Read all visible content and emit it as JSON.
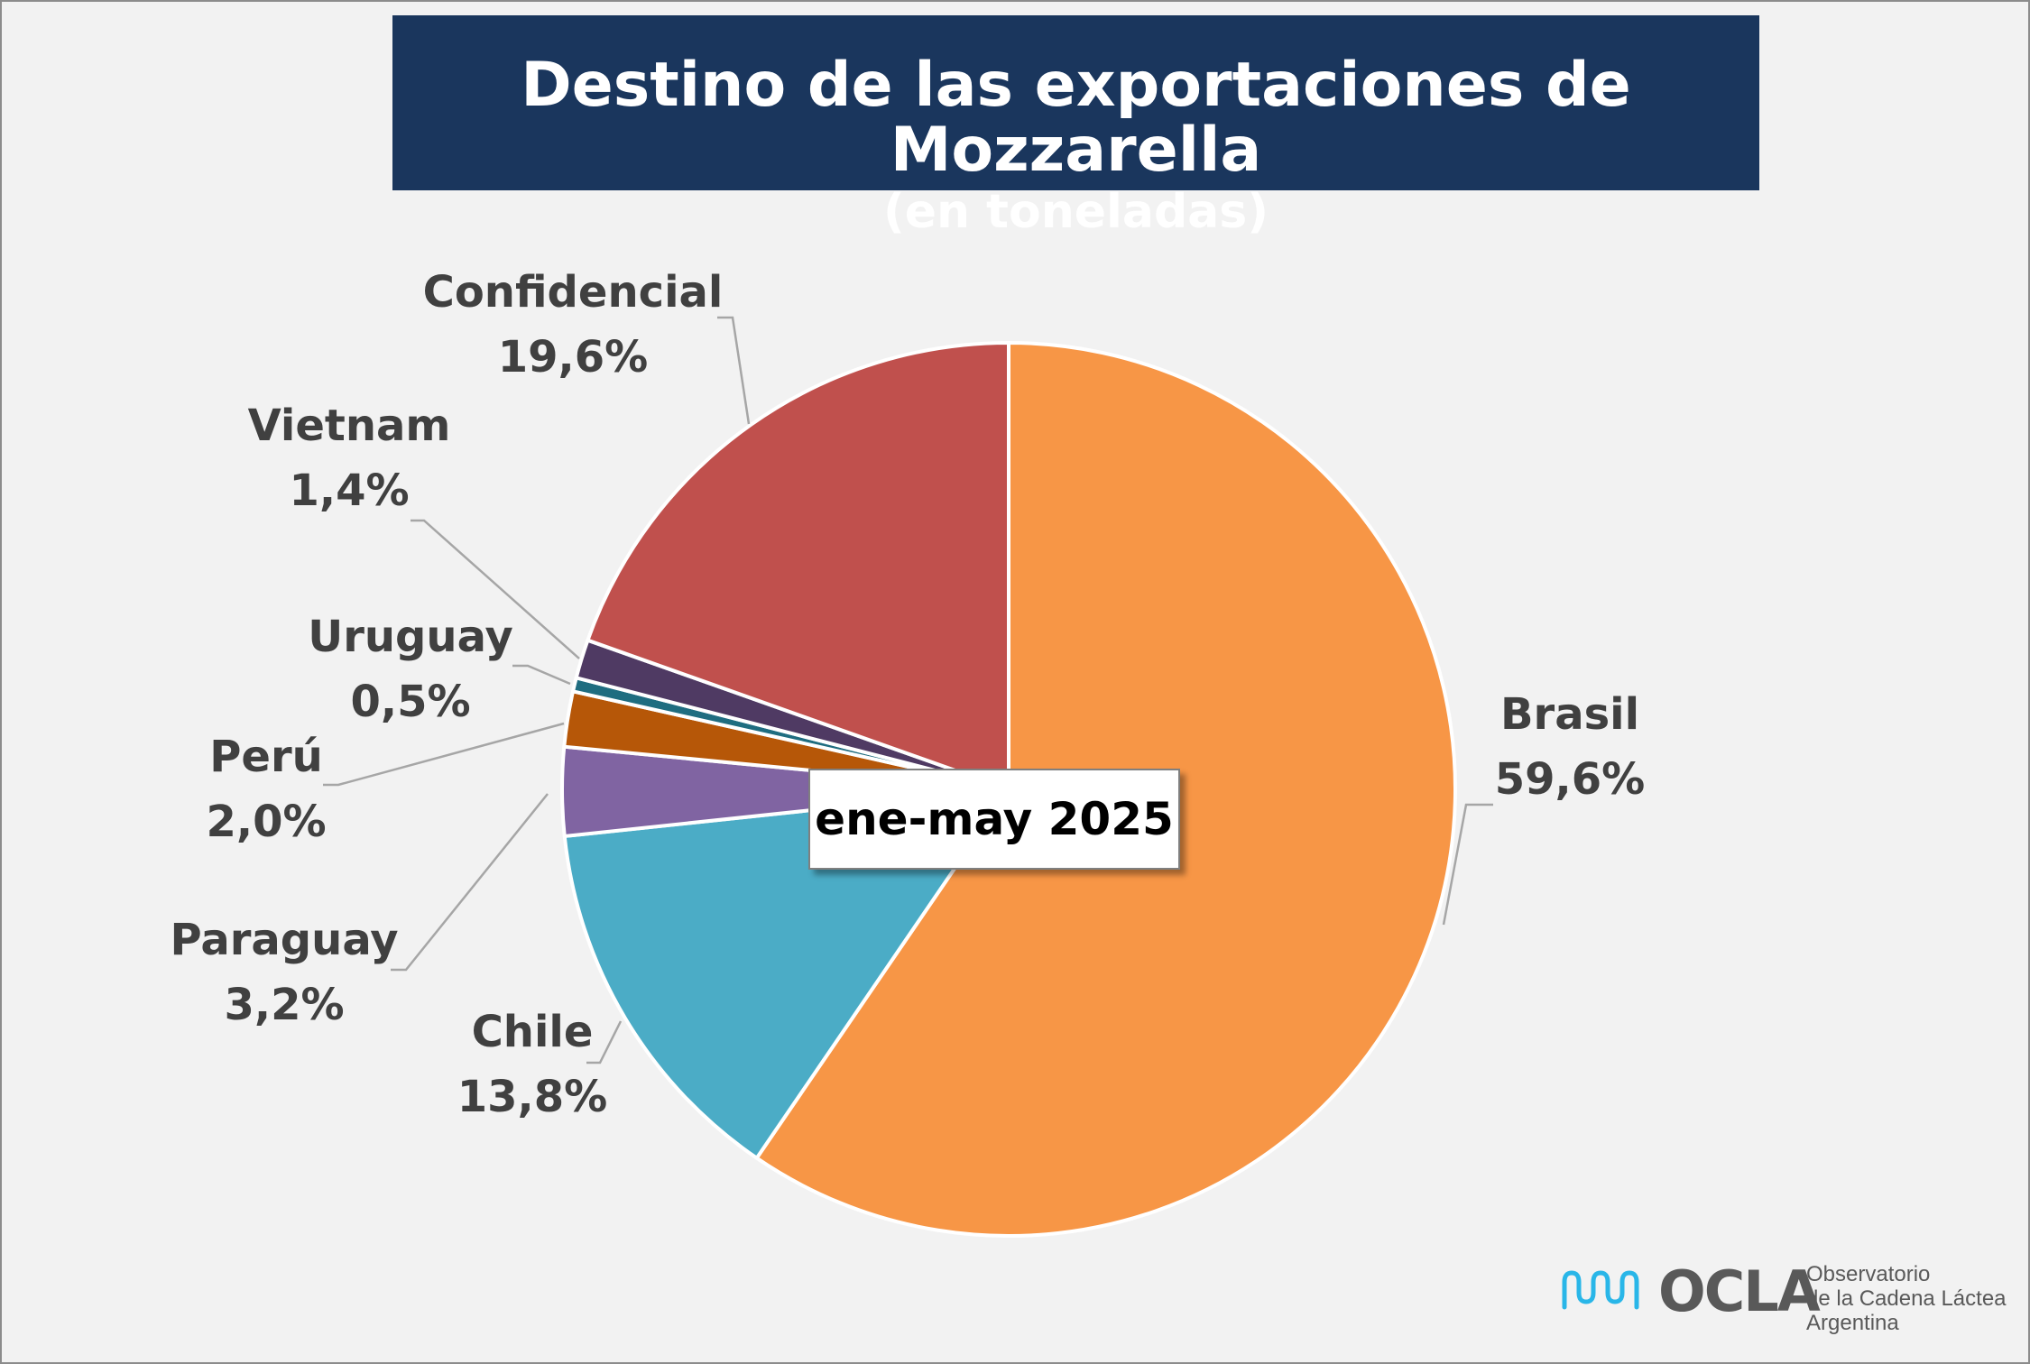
{
  "header": {
    "title": "Destino de las exportaciones de Mozzarella",
    "subtitle": "(en toneladas)"
  },
  "period_label": "ene-may 2025",
  "logo": {
    "name": "OCLA",
    "line1": "Observatorio",
    "line2": "de la Cadena Láctea",
    "line3": "Argentina"
  },
  "chart_data": {
    "type": "pie",
    "title": "Destino de las exportaciones de Mozzarella",
    "subtitle": "(en toneladas)",
    "slices": [
      {
        "name": "Brasil",
        "value": 59.6,
        "label": "59,6%",
        "color": "#f79646"
      },
      {
        "name": "Chile",
        "value": 13.8,
        "label": "13,8%",
        "color": "#4bacc6"
      },
      {
        "name": "Paraguay",
        "value": 3.2,
        "label": "3,2%",
        "color": "#8064a2"
      },
      {
        "name": "Perú",
        "value": 2.0,
        "label": "2,0%",
        "color": "#b65708"
      },
      {
        "name": "Uruguay",
        "value": 0.5,
        "label": "0,5%",
        "color": "#1f6d80"
      },
      {
        "name": "Vietnam",
        "value": 1.4,
        "label": "1,4%",
        "color": "#4f3a63"
      },
      {
        "name": "Confidencial",
        "value": 19.6,
        "label": "19,6%",
        "color": "#c0504d"
      }
    ],
    "start": "12 o'clock",
    "direction": "clockwise",
    "labels": "outside with leader lines"
  }
}
